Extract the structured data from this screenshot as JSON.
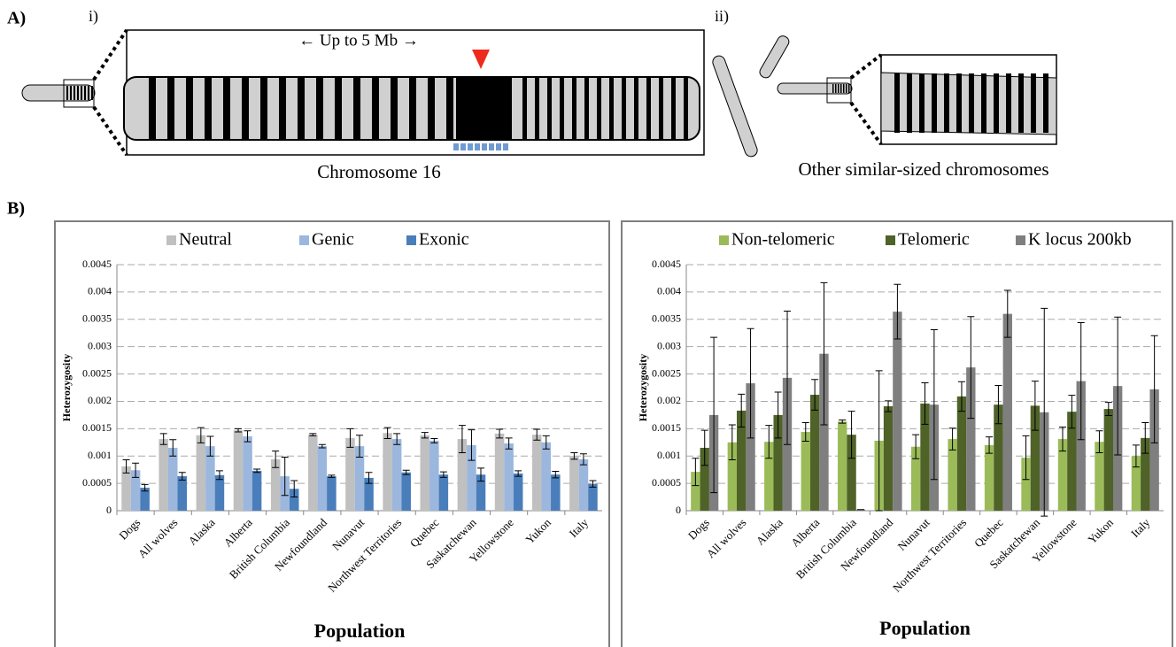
{
  "figure": {
    "panel_a": "A)",
    "label_i": "i)",
    "label_ii": "ii)",
    "span": "← Up to 5 Mb →",
    "chrom16": "Chromosome 16",
    "others": "Other similar-sized chromosomes",
    "panel_b": "B)"
  },
  "chart_data": [
    {
      "type": "bar",
      "x_label": "Population",
      "y_label": "Heterozygosity",
      "categories": [
        "Dogs",
        "All wolves",
        "Alaska",
        "Alberta",
        "British Columbia",
        "Newfoundland",
        "Nunavut",
        "Northwest Territories",
        "Quebec",
        "Saskatchewan",
        "Yellowstone",
        "Yukon",
        "Italy"
      ],
      "series": [
        {
          "name": "Neutral",
          "color": "#c0c0c0",
          "values": [
            0.00081,
            0.00131,
            0.00138,
            0.00147,
            0.00094,
            0.00139,
            0.00133,
            0.00142,
            0.00138,
            0.00131,
            0.00141,
            0.00139,
            0.001
          ],
          "errors": [
            0.00012,
            0.0001,
            0.00014,
            3e-05,
            0.00015,
            2e-05,
            0.00017,
            0.0001,
            5e-05,
            0.00025,
            8e-05,
            0.0001,
            6e-05
          ]
        },
        {
          "name": "Genic",
          "color": "#9bb7dd",
          "values": [
            0.00074,
            0.00115,
            0.00118,
            0.00136,
            0.00063,
            0.00118,
            0.00118,
            0.00131,
            0.00128,
            0.0012,
            0.00123,
            0.00125,
            0.00094
          ],
          "errors": [
            0.00013,
            0.00015,
            0.00018,
            0.0001,
            0.00035,
            3e-05,
            0.0002,
            0.0001,
            4e-05,
            0.00028,
            0.0001,
            0.00012,
            0.0001
          ]
        },
        {
          "name": "Exonic",
          "color": "#4a7ebb",
          "values": [
            0.00042,
            0.00063,
            0.00065,
            0.00073,
            0.0004,
            0.00063,
            0.0006,
            0.0007,
            0.00066,
            0.00066,
            0.00068,
            0.00066,
            0.00049
          ],
          "errors": [
            6e-05,
            7e-05,
            8e-05,
            3e-05,
            0.00015,
            2e-05,
            0.0001,
            4e-05,
            5e-05,
            0.00012,
            5e-05,
            6e-05,
            6e-05
          ]
        }
      ],
      "ylim": [
        0,
        0.0045
      ],
      "yticks": [
        0,
        0.0005,
        0.001,
        0.0015,
        0.002,
        0.0025,
        0.003,
        0.0035,
        0.004,
        0.0045
      ],
      "grid": true,
      "legend": "top"
    },
    {
      "type": "bar",
      "x_label": "Population",
      "y_label": "Heterozygosity",
      "categories": [
        "Dogs",
        "All wolves",
        "Alaska",
        "Alberta",
        "British Columbia",
        "Newfoundland",
        "Nunavut",
        "Northwest Territories",
        "Quebec",
        "Saskatchewan",
        "Yellowstone",
        "Yukon",
        "Italy"
      ],
      "series": [
        {
          "name": "Non-telomeric",
          "color": "#9bbb59",
          "values": [
            0.00071,
            0.00125,
            0.00126,
            0.00144,
            0.00163,
            0.00128,
            0.00117,
            0.00131,
            0.0012,
            0.00097,
            0.00131,
            0.00126,
            0.001
          ],
          "errors": [
            0.00025,
            0.00032,
            0.0003,
            0.00017,
            3e-05,
            0.00128,
            0.00022,
            0.0002,
            0.00015,
            0.0004,
            0.00022,
            0.0002,
            0.0002
          ]
        },
        {
          "name": "Telomeric",
          "color": "#4f6228",
          "values": [
            0.00115,
            0.00183,
            0.00175,
            0.00212,
            0.00139,
            0.00191,
            0.00196,
            0.00209,
            0.00194,
            0.00192,
            0.00181,
            0.00186,
            0.00133
          ],
          "errors": [
            0.00032,
            0.0003,
            0.00042,
            0.00028,
            0.00043,
            0.0001,
            0.00038,
            0.00027,
            0.00035,
            0.00045,
            0.0003,
            0.00012,
            0.00028
          ]
        },
        {
          "name": "K locus 200kb",
          "color": "#7f7f7f",
          "values": [
            0.00175,
            0.00233,
            0.00243,
            0.00287,
            2e-05,
            0.00364,
            0.00194,
            0.00262,
            0.0036,
            0.0018,
            0.00237,
            0.00228,
            0.00222
          ],
          "errors": [
            0.00142,
            0.001,
            0.00122,
            0.0013,
            0,
            0.0005,
            0.00137,
            0.00093,
            0.00043,
            0.0019,
            0.00107,
            0.00126,
            0.00098
          ]
        }
      ],
      "ylim": [
        0,
        0.0045
      ],
      "yticks": [
        0,
        0.0005,
        0.001,
        0.0015,
        0.002,
        0.0025,
        0.003,
        0.0035,
        0.004,
        0.0045
      ],
      "grid": true,
      "legend": "top"
    }
  ]
}
